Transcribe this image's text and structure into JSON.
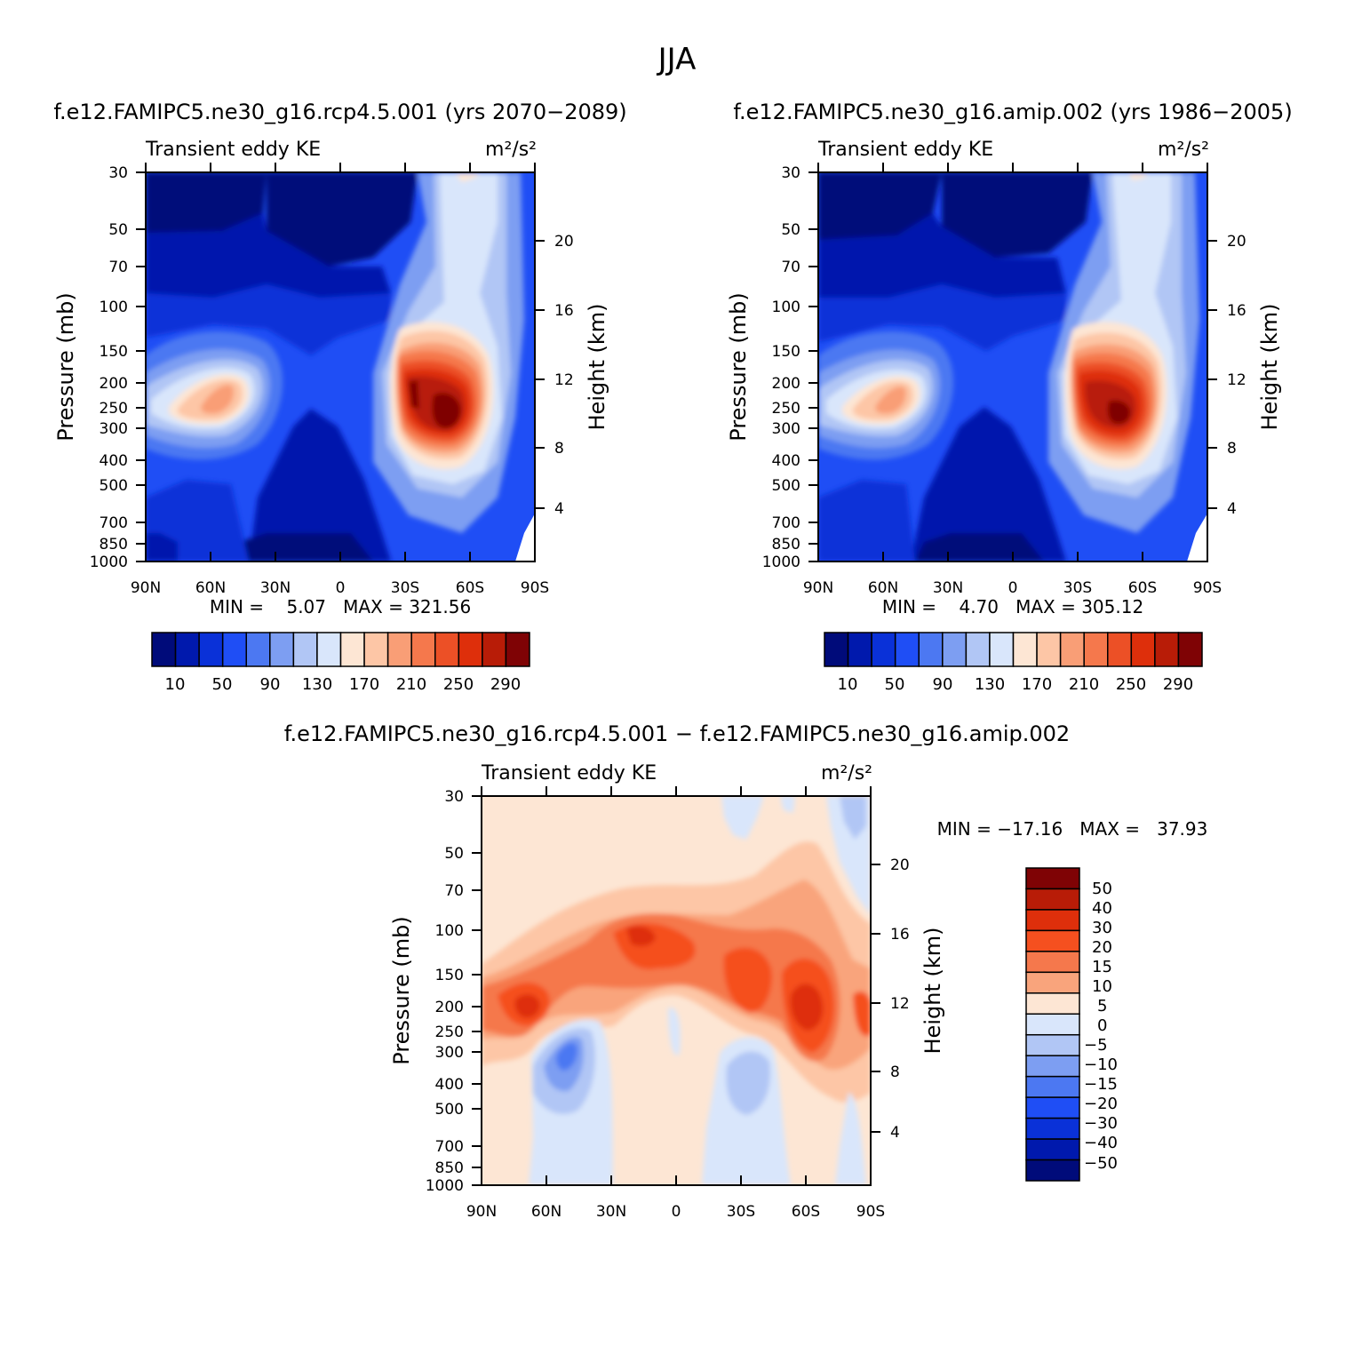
{
  "figure": {
    "title": "JJA"
  },
  "chart_data": [
    {
      "type": "contour",
      "subtitle": "f.e12.FAMIPC5.ne30_g16.rcp4.5.001 (yrs 2070-2089)",
      "title_left": "Transient eddy KE",
      "units": "m²/s²",
      "ylabel": "Pressure (mb)",
      "ylabel_right": "Height (km)",
      "x_ticks": [
        "90N",
        "60N",
        "30N",
        "0",
        "30S",
        "60S",
        "90S"
      ],
      "y_ticks": [
        "30",
        "50",
        "70",
        "100",
        "150",
        "200",
        "250",
        "300",
        "400",
        "500",
        "700",
        "850",
        "1000"
      ],
      "y_right_ticks": [
        "20",
        "16",
        "12",
        "8",
        "4"
      ],
      "stats": "MIN =    5.07   MAX = 321.56",
      "colorbar_labels": [
        "10",
        "50",
        "90",
        "130",
        "170",
        "210",
        "250",
        "290"
      ],
      "colorscale": [
        "#000b7a",
        "#0019ad",
        "#0a31d8",
        "#1f4ef5",
        "#4c78f2",
        "#7d9ef2",
        "#b1c6f5",
        "#d9e6fb",
        "#fde6d4",
        "#fdc6a6",
        "#f99e76",
        "#f5784c",
        "#ec5026",
        "#de2f0b",
        "#b81c07",
        "#7f0305"
      ],
      "ylim_mb": [
        1000,
        30
      ],
      "xlim_lat": [
        90,
        -90
      ]
    },
    {
      "type": "contour",
      "subtitle": "f.e12.FAMIPC5.ne30_g16.amip.002 (yrs 1986-2005)",
      "title_left": "Transient eddy KE",
      "units": "m²/s²",
      "ylabel": "Pressure (mb)",
      "ylabel_right": "Height (km)",
      "x_ticks": [
        "90N",
        "60N",
        "30N",
        "0",
        "30S",
        "60S",
        "90S"
      ],
      "y_ticks": [
        "30",
        "50",
        "70",
        "100",
        "150",
        "200",
        "250",
        "300",
        "400",
        "500",
        "700",
        "850",
        "1000"
      ],
      "y_right_ticks": [
        "20",
        "16",
        "12",
        "8",
        "4"
      ],
      "stats": "MIN =    4.70   MAX = 305.12",
      "colorbar_labels": [
        "10",
        "50",
        "90",
        "130",
        "170",
        "210",
        "250",
        "290"
      ],
      "colorscale": [
        "#000b7a",
        "#0019ad",
        "#0a31d8",
        "#1f4ef5",
        "#4c78f2",
        "#7d9ef2",
        "#b1c6f5",
        "#d9e6fb",
        "#fde6d4",
        "#fdc6a6",
        "#f99e76",
        "#f5784c",
        "#ec5026",
        "#de2f0b",
        "#b81c07",
        "#7f0305"
      ],
      "ylim_mb": [
        1000,
        30
      ],
      "xlim_lat": [
        90,
        -90
      ]
    },
    {
      "type": "contour",
      "subtitle": "f.e12.FAMIPC5.ne30_g16.rcp4.5.001 - f.e12.FAMIPC5.ne30_g16.amip.002",
      "title_left": "Transient eddy KE",
      "units": "m²/s²",
      "ylabel": "Pressure (mb)",
      "ylabel_right": "Height (km)",
      "x_ticks": [
        "90N",
        "60N",
        "30N",
        "0",
        "30S",
        "60S",
        "90S"
      ],
      "y_ticks": [
        "30",
        "50",
        "70",
        "100",
        "150",
        "200",
        "250",
        "300",
        "400",
        "500",
        "700",
        "850",
        "1000"
      ],
      "y_right_ticks": [
        "20",
        "16",
        "12",
        "8",
        "4"
      ],
      "stats": "MIN = -17.16   MAX =   37.93",
      "colorbar_labels": [
        "50",
        "40",
        "30",
        "20",
        "15",
        "10",
        "5",
        "0",
        "-5",
        "-10",
        "-15",
        "-20",
        "-30",
        "-40",
        "-50"
      ],
      "colorscale": [
        "#7f0305",
        "#b81c07",
        "#de2f0b",
        "#f5501f",
        "#f5784c",
        "#f9a47c",
        "#fde6d4",
        "#d9e6fb",
        "#b1c6f5",
        "#7d9ef2",
        "#4c78f2",
        "#1f4ef5",
        "#0a31d8",
        "#0019ad",
        "#000b7a"
      ],
      "ylim_mb": [
        1000,
        30
      ],
      "xlim_lat": [
        90,
        -90
      ]
    }
  ]
}
